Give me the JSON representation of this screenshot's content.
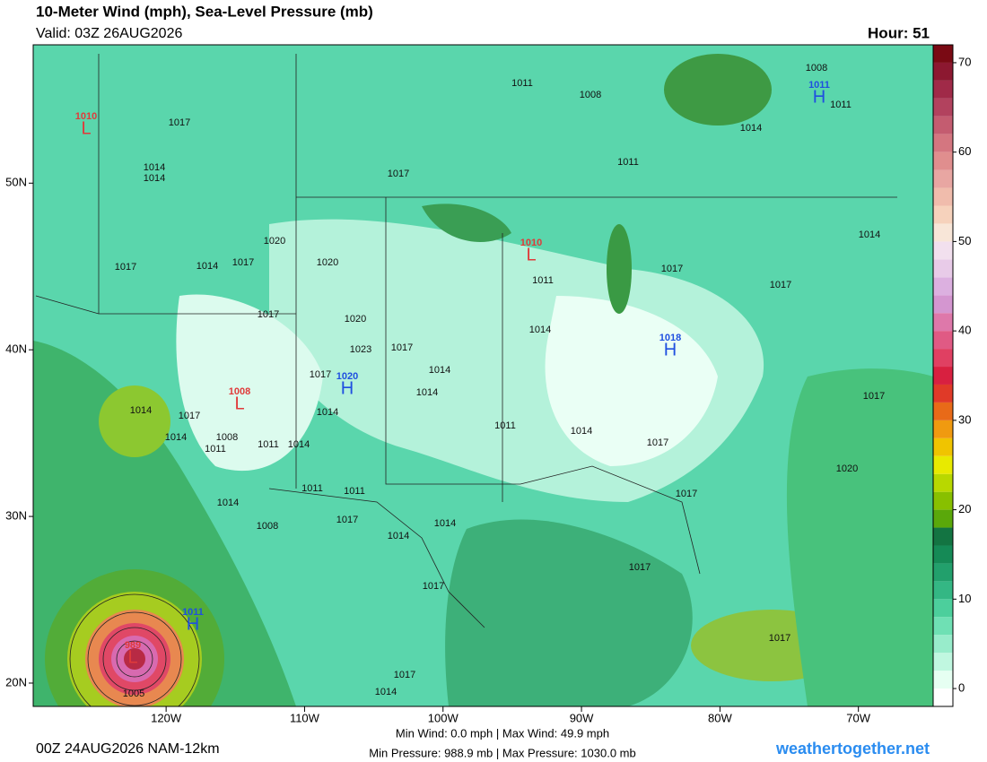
{
  "header": {
    "title": "10-Meter Wind (mph), Sea-Level Pressure (mb)",
    "valid": "Valid: 03Z 26AUG2026",
    "hour": "Hour: 51"
  },
  "map": {
    "lon_lim": [
      -129.6,
      -64.6
    ],
    "lat_lim": [
      58.3,
      18.6
    ],
    "lon_ticks": [
      {
        "value": -120,
        "label": "120W"
      },
      {
        "value": -110,
        "label": "110W"
      },
      {
        "value": -100,
        "label": "100W"
      },
      {
        "value": -90,
        "label": "90W"
      },
      {
        "value": -80,
        "label": "80W"
      },
      {
        "value": -70,
        "label": "70W"
      }
    ],
    "lat_ticks": [
      {
        "value": 50,
        "label": "50N"
      },
      {
        "value": 40,
        "label": "40N"
      },
      {
        "value": 30,
        "label": "30N"
      },
      {
        "value": 20,
        "label": "20N"
      }
    ],
    "pressure_centers": [
      {
        "symbol": "L",
        "value": 1010,
        "color": "#e03a3a"
      },
      {
        "symbol": "H",
        "value": 1011,
        "color": "#1f4fe0"
      },
      {
        "symbol": "L",
        "value": 1010,
        "color": "#e03a3a"
      },
      {
        "symbol": "H",
        "value": 1018,
        "color": "#1f4fe0"
      },
      {
        "symbol": "H",
        "value": 1020,
        "color": "#1f4fe0"
      },
      {
        "symbol": "L",
        "value": 1008,
        "color": "#e03a3a"
      },
      {
        "symbol": "H",
        "value": 1011,
        "color": "#1f4fe0"
      },
      {
        "symbol": "L",
        "value": 989,
        "color": "#e03a3a"
      }
    ],
    "isobar_labels": [
      1017,
      1014,
      1014,
      1017,
      1020,
      1014,
      1017,
      1020,
      1017,
      1020,
      1023,
      1017,
      1017,
      1014,
      1014,
      1014,
      1017,
      1014,
      1011,
      1008,
      1011,
      1014,
      1014,
      1011,
      1011,
      1014,
      1017,
      1008,
      1014,
      1014,
      1017,
      1011,
      1014,
      1017,
      1017,
      1017,
      1014,
      1011,
      1011,
      1017,
      1017,
      1014,
      1017,
      1020,
      1017,
      1011,
      1008,
      1014,
      1008,
      1011,
      1017,
      1017,
      1014,
      1005
    ]
  },
  "colorbar": {
    "lim": [
      -2,
      72
    ],
    "ticks": [
      0,
      10,
      20,
      30,
      40,
      50,
      60,
      70
    ],
    "colors": [
      "#ffffff",
      "#e6fff2",
      "#c0f7e0",
      "#98eccb",
      "#6fe0b4",
      "#4ccf9c",
      "#34b784",
      "#22a06c",
      "#158a56",
      "#137442",
      "#5aa80a",
      "#88c000",
      "#b8d800",
      "#e8ea00",
      "#f0c400",
      "#f09a10",
      "#e86a18",
      "#e03a28",
      "#d82040",
      "#e04062",
      "#e05a84",
      "#de78aa",
      "#d496d0",
      "#dcb0e0",
      "#e8cbe8",
      "#f2e0ee",
      "#f8e6d8",
      "#f6d2bc",
      "#f0bcac",
      "#e8a6a2",
      "#e08e8e",
      "#d47680",
      "#c45c70",
      "#b2425e",
      "#a02a48",
      "#8c1830",
      "#7a0a14"
    ]
  },
  "footer": {
    "run": "00Z 24AUG2026 NAM-12km",
    "wind": "Min Wind:   0.0 mph | Max Wind:  49.9 mph",
    "pressure": "Min Pressure: 988.9 mb | Max Pressure: 1030.0 mb",
    "site": "weathertogether.net"
  }
}
